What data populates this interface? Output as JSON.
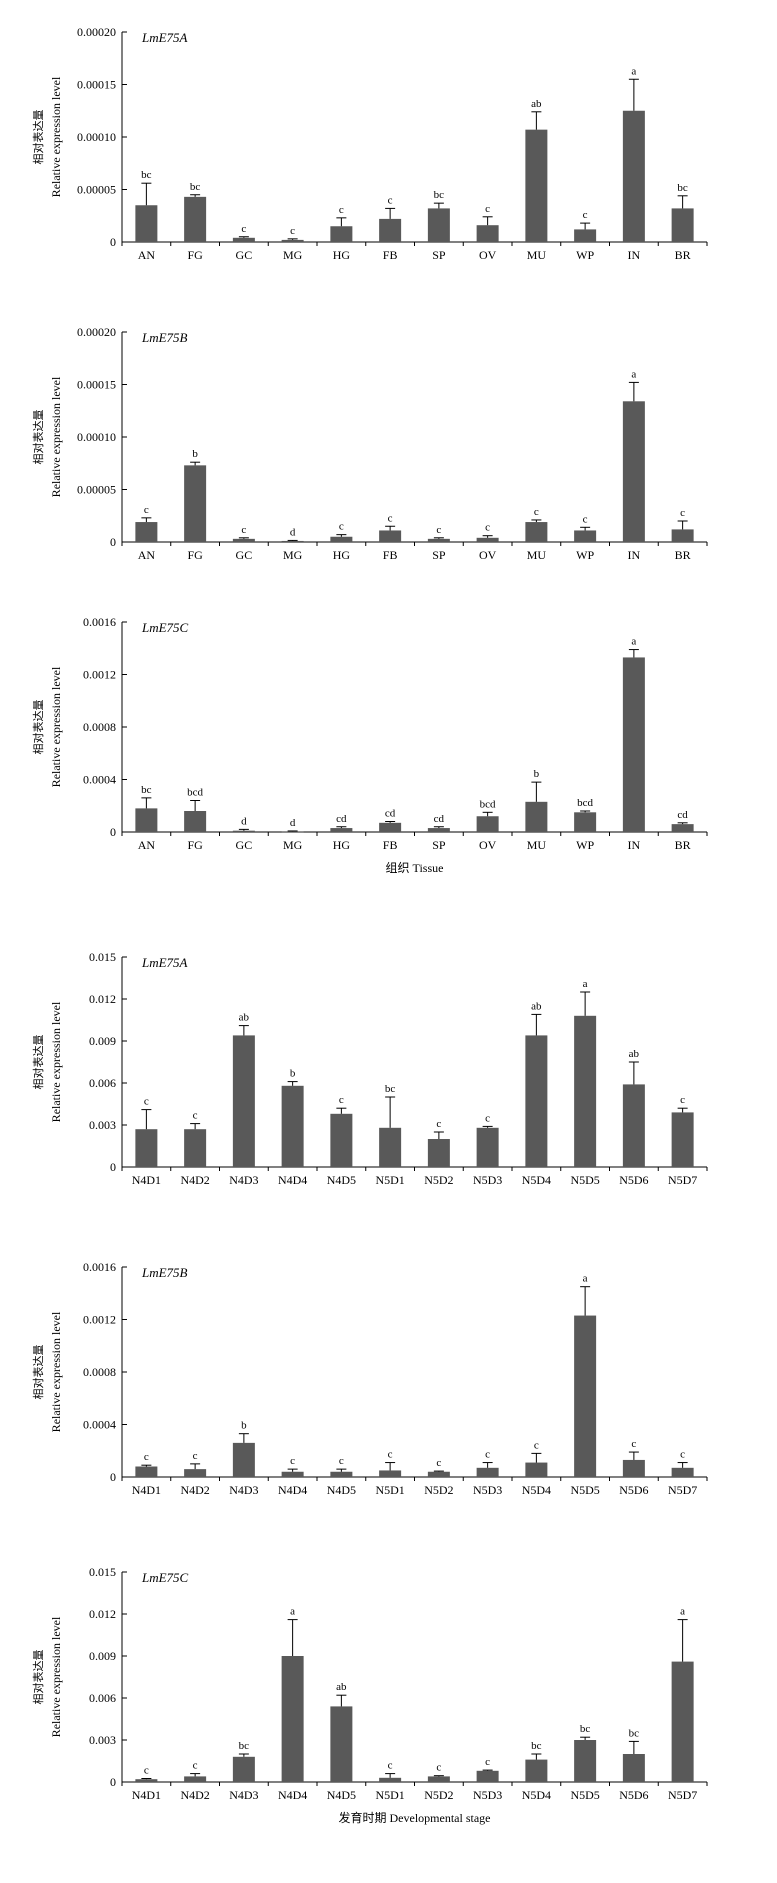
{
  "chart_data": [
    {
      "type": "bar",
      "gene": "LmE75A",
      "ylabel_cn": "相对表达量",
      "ylabel": "Relative expression level",
      "xlabel": "",
      "ylim": [
        0,
        0.0002
      ],
      "yticks": [
        "0",
        "0.00005",
        "0.00010",
        "0.00015",
        "0.00020"
      ],
      "categories": [
        "AN",
        "FG",
        "GC",
        "MG",
        "HG",
        "FB",
        "SP",
        "OV",
        "MU",
        "WP",
        "IN",
        "BR"
      ],
      "values": [
        3.5e-05,
        4.3e-05,
        4e-06,
        2e-06,
        1.5e-05,
        2.2e-05,
        3.2e-05,
        1.6e-05,
        0.000107,
        1.2e-05,
        0.000125,
        3.2e-05
      ],
      "errors": [
        2.1e-05,
        2e-06,
        1e-06,
        1e-06,
        8e-06,
        1e-05,
        5e-06,
        8e-06,
        1.7e-05,
        6e-06,
        3e-05,
        1.2e-05
      ],
      "significance": [
        "bc",
        "bc",
        "c",
        "c",
        "c",
        "c",
        "bc",
        "c",
        "ab",
        "c",
        "a",
        "bc"
      ]
    },
    {
      "type": "bar",
      "gene": "LmE75B",
      "ylabel_cn": "相对表达量",
      "ylabel": "Relative expression level",
      "xlabel": "",
      "ylim": [
        0,
        0.0002
      ],
      "yticks": [
        "0",
        "0.00005",
        "0.00010",
        "0.00015",
        "0.00020"
      ],
      "categories": [
        "AN",
        "FG",
        "GC",
        "MG",
        "HG",
        "FB",
        "SP",
        "OV",
        "MU",
        "WP",
        "IN",
        "BR"
      ],
      "values": [
        1.9e-05,
        7.3e-05,
        3e-06,
        1e-06,
        5e-06,
        1.1e-05,
        3e-06,
        4e-06,
        1.9e-05,
        1.1e-05,
        0.000134,
        1.2e-05
      ],
      "errors": [
        4e-06,
        3e-06,
        1e-06,
        5e-07,
        2e-06,
        4e-06,
        1e-06,
        2e-06,
        2e-06,
        3e-06,
        1.8e-05,
        8e-06
      ],
      "significance": [
        "c",
        "b",
        "c",
        "d",
        "c",
        "c",
        "c",
        "c",
        "c",
        "c",
        "a",
        "c"
      ]
    },
    {
      "type": "bar",
      "gene": "LmE75C",
      "ylabel_cn": "相对表达量",
      "ylabel": "Relative expression level",
      "xlabel": "组织 Tissue",
      "ylim": [
        0,
        0.0016
      ],
      "yticks": [
        "0",
        "0.0004",
        "0.0008",
        "0.0012",
        "0.0016"
      ],
      "categories": [
        "AN",
        "FG",
        "GC",
        "MG",
        "HG",
        "FB",
        "SP",
        "OV",
        "MU",
        "WP",
        "IN",
        "BR"
      ],
      "values": [
        0.00018,
        0.00016,
        1e-05,
        5e-06,
        3e-05,
        7e-05,
        3e-05,
        0.00012,
        0.00023,
        0.00015,
        0.00133,
        6e-05
      ],
      "errors": [
        8e-05,
        8e-05,
        1e-05,
        3e-06,
        1e-05,
        1e-05,
        1e-05,
        3e-05,
        0.00015,
        1e-05,
        6e-05,
        1e-05
      ],
      "significance": [
        "bc",
        "bcd",
        "d",
        "d",
        "cd",
        "cd",
        "cd",
        "bcd",
        "b",
        "bcd",
        "a",
        "cd"
      ]
    },
    {
      "type": "bar",
      "gene": "LmE75A",
      "ylabel_cn": "相对表达量",
      "ylabel": "Relative expression level",
      "xlabel": "",
      "ylim": [
        0,
        0.015
      ],
      "yticks": [
        "0",
        "0.003",
        "0.006",
        "0.009",
        "0.012",
        "0.015"
      ],
      "categories": [
        "N4D1",
        "N4D2",
        "N4D3",
        "N4D4",
        "N4D5",
        "N5D1",
        "N5D2",
        "N5D3",
        "N5D4",
        "N5D5",
        "N5D6",
        "N5D7"
      ],
      "values": [
        0.0027,
        0.0027,
        0.0094,
        0.0058,
        0.0038,
        0.0028,
        0.002,
        0.0028,
        0.0094,
        0.0108,
        0.0059,
        0.0039
      ],
      "errors": [
        0.0014,
        0.0004,
        0.0007,
        0.0003,
        0.0004,
        0.0022,
        0.0005,
        0.0001,
        0.0015,
        0.0017,
        0.0016,
        0.0003
      ],
      "significance": [
        "c",
        "c",
        "ab",
        "b",
        "c",
        "bc",
        "c",
        "c",
        "ab",
        "a",
        "ab",
        "c"
      ]
    },
    {
      "type": "bar",
      "gene": "LmE75B",
      "ylabel_cn": "相对表达量",
      "ylabel": "Relative expression level",
      "xlabel": "",
      "ylim": [
        0,
        0.0016
      ],
      "yticks": [
        "0",
        "0.0004",
        "0.0008",
        "0.0012",
        "0.0016"
      ],
      "categories": [
        "N4D1",
        "N4D2",
        "N4D3",
        "N4D4",
        "N4D5",
        "N5D1",
        "N5D2",
        "N5D3",
        "N5D4",
        "N5D5",
        "N5D6",
        "N5D7"
      ],
      "values": [
        8e-05,
        6e-05,
        0.00026,
        4e-05,
        4e-05,
        5e-05,
        4e-05,
        7e-05,
        0.00011,
        0.00123,
        0.00013,
        7e-05
      ],
      "errors": [
        1e-05,
        4e-05,
        7e-05,
        2e-05,
        2e-05,
        6e-05,
        5e-06,
        4e-05,
        7e-05,
        0.00022,
        6e-05,
        4e-05
      ],
      "significance": [
        "c",
        "c",
        "b",
        "c",
        "c",
        "c",
        "c",
        "c",
        "c",
        "a",
        "c",
        "c"
      ]
    },
    {
      "type": "bar",
      "gene": "LmE75C",
      "ylabel_cn": "相对表达量",
      "ylabel": "Relative expression level",
      "xlabel": "发育时期 Developmental stage",
      "ylim": [
        0,
        0.015
      ],
      "yticks": [
        "0",
        "0.003",
        "0.006",
        "0.009",
        "0.012",
        "0.015"
      ],
      "categories": [
        "N4D1",
        "N4D2",
        "N4D3",
        "N4D4",
        "N4D5",
        "N5D1",
        "N5D2",
        "N5D3",
        "N5D4",
        "N5D5",
        "N5D6",
        "N5D7"
      ],
      "values": [
        0.0002,
        0.0004,
        0.0018,
        0.009,
        0.0054,
        0.0003,
        0.0004,
        0.0008,
        0.0016,
        0.003,
        0.002,
        0.0086
      ],
      "errors": [
        5e-05,
        0.0002,
        0.0002,
        0.0026,
        0.0008,
        0.0003,
        5e-05,
        5e-05,
        0.0004,
        0.0002,
        0.0009,
        0.003
      ],
      "significance": [
        "c",
        "c",
        "bc",
        "a",
        "ab",
        "c",
        "c",
        "c",
        "bc",
        "bc",
        "bc",
        "a"
      ]
    }
  ]
}
